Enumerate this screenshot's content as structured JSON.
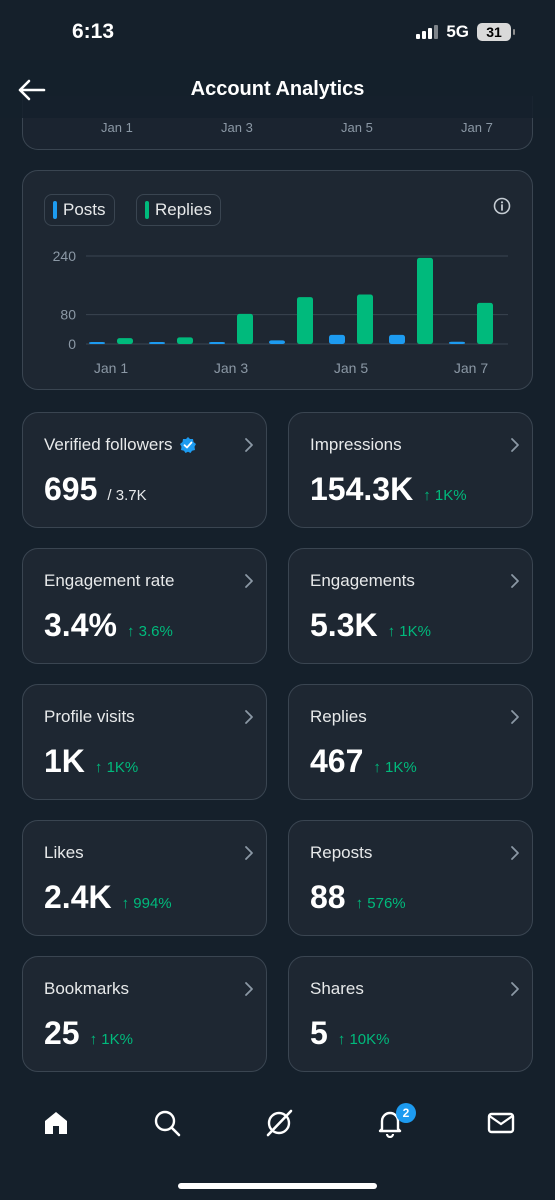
{
  "status_bar": {
    "time": "6:13",
    "network": "5G",
    "battery": "31"
  },
  "header": {
    "title": "Account Analytics",
    "back_icon": "arrow-left-icon"
  },
  "previous_chart": {
    "tick_labels": [
      "Jan 1",
      "Jan 3",
      "Jan 5",
      "Jan 7"
    ]
  },
  "legend": [
    {
      "label": "Posts",
      "color": "#1d9bf0"
    },
    {
      "label": "Replies",
      "color": "#00ba7c"
    }
  ],
  "chart_data": {
    "type": "bar",
    "categories": [
      "Jan 1",
      "Jan 2",
      "Jan 3",
      "Jan 4",
      "Jan 5",
      "Jan 6",
      "Jan 7"
    ],
    "x_tick_labels": [
      "Jan 1",
      "Jan 3",
      "Jan 5",
      "Jan 7"
    ],
    "y_tick_labels": [
      "240",
      "80",
      "0"
    ],
    "y_ticks": [
      240,
      80,
      0
    ],
    "ylim": [
      0,
      250
    ],
    "series": [
      {
        "name": "Posts",
        "color": "#1d9bf0",
        "values": [
          2,
          2,
          5,
          10,
          25,
          25,
          6
        ]
      },
      {
        "name": "Replies",
        "color": "#00ba7c",
        "values": [
          16,
          18,
          82,
          128,
          135,
          235,
          112
        ]
      }
    ],
    "grid": true
  },
  "metrics": [
    {
      "label": "Verified followers",
      "verified": true,
      "value": "695",
      "sub": "/ 3.7K",
      "delta": ""
    },
    {
      "label": "Impressions",
      "value": "154.3K",
      "sub": "",
      "delta": "↑ 1K%"
    },
    {
      "label": "Engagement rate",
      "value": "3.4%",
      "sub": "",
      "delta": "↑ 3.6%"
    },
    {
      "label": "Engagements",
      "value": "5.3K",
      "sub": "",
      "delta": "↑ 1K%"
    },
    {
      "label": "Profile visits",
      "value": "1K",
      "sub": "",
      "delta": "↑ 1K%"
    },
    {
      "label": "Replies",
      "value": "467",
      "sub": "",
      "delta": "↑ 1K%"
    },
    {
      "label": "Likes",
      "value": "2.4K",
      "sub": "",
      "delta": "↑ 994%"
    },
    {
      "label": "Reposts",
      "value": "88",
      "sub": "",
      "delta": "↑ 576%"
    },
    {
      "label": "Bookmarks",
      "value": "25",
      "sub": "",
      "delta": "↑ 1K%"
    },
    {
      "label": "Shares",
      "value": "5",
      "sub": "",
      "delta": "↑ 10K%"
    }
  ],
  "bottom_nav": {
    "items": [
      "home-icon",
      "search-icon",
      "grok-icon",
      "bell-icon",
      "mail-icon"
    ],
    "notification_badge": "2"
  }
}
